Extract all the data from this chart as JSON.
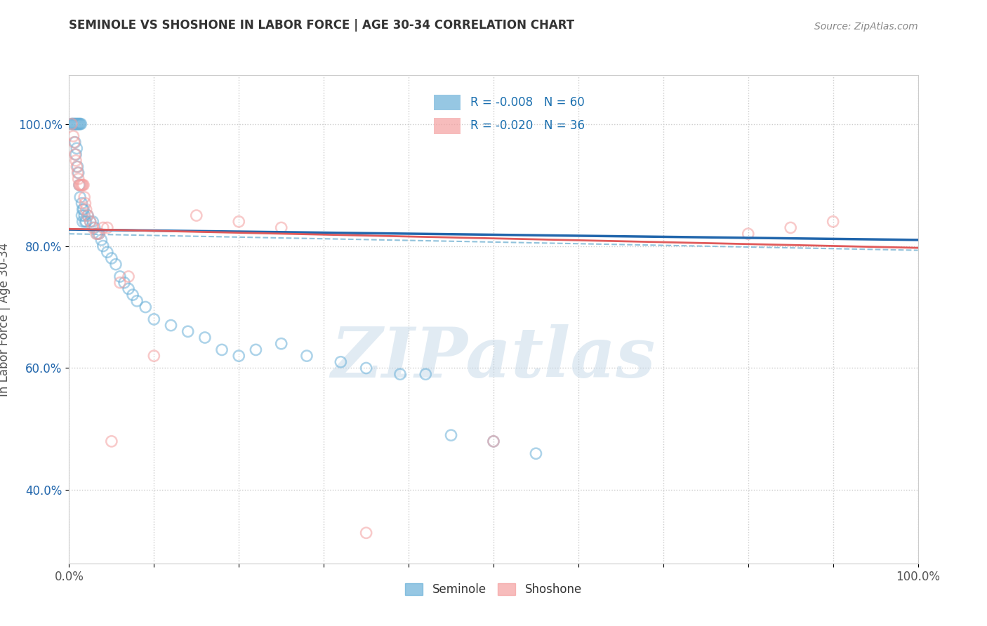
{
  "title": "SEMINOLE VS SHOSHONE IN LABOR FORCE | AGE 30-34 CORRELATION CHART",
  "source": "Source: ZipAtlas.com",
  "ylabel": "In Labor Force | Age 30-34",
  "xlim": [
    0.0,
    1.0
  ],
  "ylim": [
    0.28,
    1.08
  ],
  "ytick_positions": [
    0.4,
    0.6,
    0.8,
    1.0
  ],
  "ytick_labels": [
    "40.0%",
    "60.0%",
    "80.0%",
    "100.0%"
  ],
  "seminole_color": "#6ab0d8",
  "shoshone_color": "#f4a0a0",
  "seminole_line_color": "#2166ac",
  "shoshone_line_color": "#e05a5a",
  "seminole_dash_color": "#85bcd8",
  "legend_color": "#1a6faf",
  "seminole_R": -0.008,
  "seminole_N": 60,
  "shoshone_R": -0.02,
  "shoshone_N": 36,
  "seminole_scatter_x": [
    0.003,
    0.004,
    0.005,
    0.006,
    0.007,
    0.007,
    0.008,
    0.008,
    0.009,
    0.009,
    0.01,
    0.01,
    0.011,
    0.011,
    0.012,
    0.012,
    0.013,
    0.013,
    0.014,
    0.015,
    0.015,
    0.016,
    0.016,
    0.017,
    0.018,
    0.019,
    0.02,
    0.022,
    0.025,
    0.028,
    0.03,
    0.033,
    0.035,
    0.038,
    0.04,
    0.045,
    0.05,
    0.055,
    0.06,
    0.065,
    0.07,
    0.075,
    0.08,
    0.09,
    0.1,
    0.12,
    0.14,
    0.16,
    0.18,
    0.2,
    0.22,
    0.25,
    0.28,
    0.32,
    0.35,
    0.39,
    0.42,
    0.45,
    0.5,
    0.55
  ],
  "seminole_scatter_y": [
    1.0,
    1.0,
    1.0,
    1.0,
    1.0,
    0.97,
    1.0,
    0.95,
    1.0,
    0.96,
    1.0,
    0.93,
    1.0,
    0.92,
    1.0,
    0.9,
    1.0,
    0.88,
    1.0,
    0.87,
    0.85,
    0.86,
    0.84,
    0.86,
    0.85,
    0.84,
    0.84,
    0.85,
    0.84,
    0.84,
    0.83,
    0.82,
    0.82,
    0.81,
    0.8,
    0.79,
    0.78,
    0.77,
    0.75,
    0.74,
    0.73,
    0.72,
    0.71,
    0.7,
    0.68,
    0.67,
    0.66,
    0.65,
    0.63,
    0.62,
    0.63,
    0.64,
    0.62,
    0.61,
    0.6,
    0.59,
    0.59,
    0.49,
    0.48,
    0.46
  ],
  "shoshone_scatter_x": [
    0.003,
    0.005,
    0.006,
    0.007,
    0.008,
    0.009,
    0.01,
    0.011,
    0.012,
    0.013,
    0.014,
    0.015,
    0.016,
    0.017,
    0.018,
    0.019,
    0.02,
    0.022,
    0.025,
    0.028,
    0.032,
    0.035,
    0.04,
    0.045,
    0.05,
    0.06,
    0.07,
    0.1,
    0.15,
    0.2,
    0.25,
    0.35,
    0.5,
    0.8,
    0.85,
    0.9
  ],
  "shoshone_scatter_y": [
    1.0,
    0.98,
    0.97,
    0.95,
    0.94,
    0.93,
    0.92,
    0.91,
    0.9,
    0.9,
    0.9,
    0.9,
    0.9,
    0.9,
    0.88,
    0.87,
    0.86,
    0.85,
    0.84,
    0.83,
    0.82,
    0.82,
    0.83,
    0.83,
    0.48,
    0.74,
    0.75,
    0.62,
    0.85,
    0.84,
    0.83,
    0.33,
    0.48,
    0.82,
    0.83,
    0.84
  ],
  "watermark_text": "ZIPatlas",
  "background_color": "#ffffff",
  "grid_color": "#cccccc",
  "dot_size": 120,
  "dot_alpha": 0.55,
  "dot_linewidth": 1.8
}
